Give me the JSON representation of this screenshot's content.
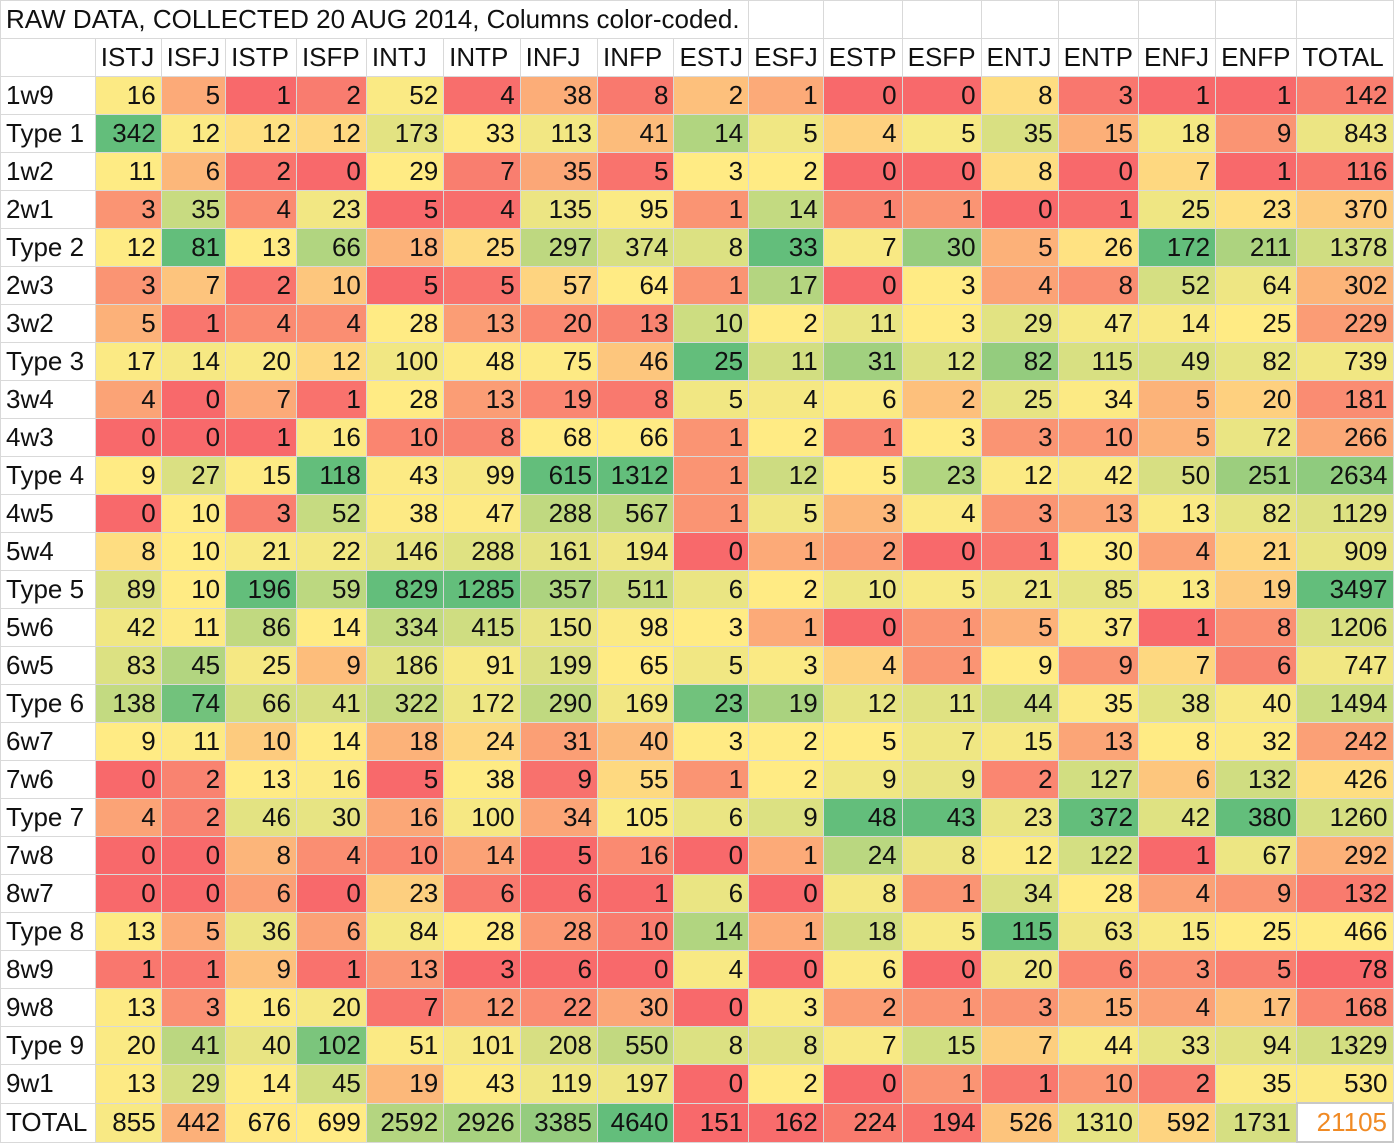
{
  "sheet_title": "RAW DATA, COLLECTED 20 AUG 2014, Columns color-coded.",
  "colors": {
    "low": "#f8696b",
    "mid": "#ffeb84",
    "high": "#63be7b",
    "grand_total_text": "#f08a24"
  },
  "chart_data": {
    "type": "table",
    "title": "RAW DATA, COLLECTED 20 AUG 2014, Columns color-coded.",
    "columns": [
      "ISTJ",
      "ISFJ",
      "ISTP",
      "ISFP",
      "INTJ",
      "INTP",
      "INFJ",
      "INFP",
      "ESTJ",
      "ESFJ",
      "ESTP",
      "ESFP",
      "ENTJ",
      "ENTP",
      "ENFJ",
      "ENFP",
      "TOTAL"
    ],
    "rows": [
      {
        "label": "1w9",
        "values": [
          16,
          5,
          1,
          2,
          52,
          4,
          38,
          8,
          2,
          1,
          0,
          0,
          8,
          3,
          1,
          1,
          142
        ]
      },
      {
        "label": "Type 1",
        "values": [
          342,
          12,
          12,
          12,
          173,
          33,
          113,
          41,
          14,
          5,
          4,
          5,
          35,
          15,
          18,
          9,
          843
        ]
      },
      {
        "label": "1w2",
        "values": [
          11,
          6,
          2,
          0,
          29,
          7,
          35,
          5,
          3,
          2,
          0,
          0,
          8,
          0,
          7,
          1,
          116
        ]
      },
      {
        "label": "2w1",
        "values": [
          3,
          35,
          4,
          23,
          5,
          4,
          135,
          95,
          1,
          14,
          1,
          1,
          0,
          1,
          25,
          23,
          370
        ]
      },
      {
        "label": "Type 2",
        "values": [
          12,
          81,
          13,
          66,
          18,
          25,
          297,
          374,
          8,
          33,
          7,
          30,
          5,
          26,
          172,
          211,
          1378
        ]
      },
      {
        "label": "2w3",
        "values": [
          3,
          7,
          2,
          10,
          5,
          5,
          57,
          64,
          1,
          17,
          0,
          3,
          4,
          8,
          52,
          64,
          302
        ]
      },
      {
        "label": "3w2",
        "values": [
          5,
          1,
          4,
          4,
          28,
          13,
          20,
          13,
          10,
          2,
          11,
          3,
          29,
          47,
          14,
          25,
          229
        ]
      },
      {
        "label": "Type 3",
        "values": [
          17,
          14,
          20,
          12,
          100,
          48,
          75,
          46,
          25,
          11,
          31,
          12,
          82,
          115,
          49,
          82,
          739
        ]
      },
      {
        "label": "3w4",
        "values": [
          4,
          0,
          7,
          1,
          28,
          13,
          19,
          8,
          5,
          4,
          6,
          2,
          25,
          34,
          5,
          20,
          181
        ]
      },
      {
        "label": "4w3",
        "values": [
          0,
          0,
          1,
          16,
          10,
          8,
          68,
          66,
          1,
          2,
          1,
          3,
          3,
          10,
          5,
          72,
          266
        ]
      },
      {
        "label": "Type 4",
        "values": [
          9,
          27,
          15,
          118,
          43,
          99,
          615,
          1312,
          1,
          12,
          5,
          23,
          12,
          42,
          50,
          251,
          2634
        ]
      },
      {
        "label": "4w5",
        "values": [
          0,
          10,
          3,
          52,
          38,
          47,
          288,
          567,
          1,
          5,
          3,
          4,
          3,
          13,
          13,
          82,
          1129
        ]
      },
      {
        "label": "5w4",
        "values": [
          8,
          10,
          21,
          22,
          146,
          288,
          161,
          194,
          0,
          1,
          2,
          0,
          1,
          30,
          4,
          21,
          909
        ]
      },
      {
        "label": "Type 5",
        "values": [
          89,
          10,
          196,
          59,
          829,
          1285,
          357,
          511,
          6,
          2,
          10,
          5,
          21,
          85,
          13,
          19,
          3497
        ]
      },
      {
        "label": "5w6",
        "values": [
          42,
          11,
          86,
          14,
          334,
          415,
          150,
          98,
          3,
          1,
          0,
          1,
          5,
          37,
          1,
          8,
          1206
        ]
      },
      {
        "label": "6w5",
        "values": [
          83,
          45,
          25,
          9,
          186,
          91,
          199,
          65,
          5,
          3,
          4,
          1,
          9,
          9,
          7,
          6,
          747
        ]
      },
      {
        "label": "Type 6",
        "values": [
          138,
          74,
          66,
          41,
          322,
          172,
          290,
          169,
          23,
          19,
          12,
          11,
          44,
          35,
          38,
          40,
          1494
        ]
      },
      {
        "label": "6w7",
        "values": [
          9,
          11,
          10,
          14,
          18,
          24,
          31,
          40,
          3,
          2,
          5,
          7,
          15,
          13,
          8,
          32,
          242
        ]
      },
      {
        "label": "7w6",
        "values": [
          0,
          2,
          13,
          16,
          5,
          38,
          9,
          55,
          1,
          2,
          9,
          9,
          2,
          127,
          6,
          132,
          426
        ]
      },
      {
        "label": "Type 7",
        "values": [
          4,
          2,
          46,
          30,
          16,
          100,
          34,
          105,
          6,
          9,
          48,
          43,
          23,
          372,
          42,
          380,
          1260
        ]
      },
      {
        "label": "7w8",
        "values": [
          0,
          0,
          8,
          4,
          10,
          14,
          5,
          16,
          0,
          1,
          24,
          8,
          12,
          122,
          1,
          67,
          292
        ]
      },
      {
        "label": "8w7",
        "values": [
          0,
          0,
          6,
          0,
          23,
          6,
          6,
          1,
          6,
          0,
          8,
          1,
          34,
          28,
          4,
          9,
          132
        ]
      },
      {
        "label": "Type 8",
        "values": [
          13,
          5,
          36,
          6,
          84,
          28,
          28,
          10,
          14,
          1,
          18,
          5,
          115,
          63,
          15,
          25,
          466
        ]
      },
      {
        "label": "8w9",
        "values": [
          1,
          1,
          9,
          1,
          13,
          3,
          6,
          0,
          4,
          0,
          6,
          0,
          20,
          6,
          3,
          5,
          78
        ]
      },
      {
        "label": "9w8",
        "values": [
          13,
          3,
          16,
          20,
          7,
          12,
          22,
          30,
          0,
          3,
          2,
          1,
          3,
          15,
          4,
          17,
          168
        ]
      },
      {
        "label": "Type 9",
        "values": [
          20,
          41,
          40,
          102,
          51,
          101,
          208,
          550,
          8,
          8,
          7,
          15,
          7,
          44,
          33,
          94,
          1329
        ]
      },
      {
        "label": "9w1",
        "values": [
          13,
          29,
          14,
          45,
          19,
          43,
          119,
          197,
          0,
          2,
          0,
          1,
          1,
          10,
          2,
          35,
          530
        ]
      }
    ],
    "total_row": {
      "label": "TOTAL",
      "values": [
        855,
        442,
        676,
        699,
        2592,
        2926,
        3385,
        4640,
        151,
        162,
        224,
        194,
        526,
        1310,
        592,
        1731
      ]
    },
    "grand_total": 21105,
    "color_scale": "red-yellow-green per column (low to high)"
  }
}
